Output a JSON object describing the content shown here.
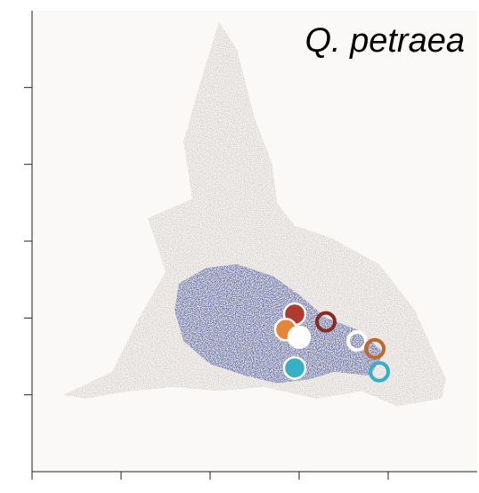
{
  "chart_data": {
    "type": "scatter",
    "title": "Q. petraea",
    "xlabel": "",
    "ylabel": "",
    "xlim": [
      0,
      5
    ],
    "ylim": [
      0,
      6
    ],
    "x_ticks": [
      0,
      1,
      2,
      3,
      4
    ],
    "y_ticks": [
      1,
      2,
      3,
      4,
      5
    ],
    "grid": false,
    "legend": "none",
    "background_density": {
      "color": "#c9c4bf",
      "outline": [
        [
          0.35,
          1.0
        ],
        [
          0.9,
          1.3
        ],
        [
          1.2,
          2.0
        ],
        [
          1.5,
          2.6
        ],
        [
          1.3,
          3.3
        ],
        [
          1.8,
          3.55
        ],
        [
          1.7,
          4.3
        ],
        [
          1.95,
          5.3
        ],
        [
          2.1,
          5.85
        ],
        [
          2.3,
          5.5
        ],
        [
          2.5,
          4.6
        ],
        [
          2.7,
          4.0
        ],
        [
          2.75,
          3.5
        ],
        [
          2.95,
          3.2
        ],
        [
          3.35,
          3.05
        ],
        [
          3.9,
          2.7
        ],
        [
          4.3,
          2.1
        ],
        [
          4.65,
          1.2
        ],
        [
          4.6,
          0.95
        ],
        [
          4.1,
          0.85
        ],
        [
          3.7,
          1.05
        ],
        [
          3.2,
          0.95
        ],
        [
          2.6,
          1.1
        ],
        [
          2.1,
          1.05
        ],
        [
          1.6,
          1.1
        ],
        [
          1.1,
          1.05
        ],
        [
          0.6,
          0.95
        ],
        [
          0.35,
          1.0
        ]
      ]
    },
    "focal_density": {
      "color": "#2e3f8f",
      "outline": [
        [
          1.65,
          2.45
        ],
        [
          1.95,
          2.65
        ],
        [
          2.3,
          2.7
        ],
        [
          2.7,
          2.55
        ],
        [
          3.0,
          2.3
        ],
        [
          3.3,
          2.0
        ],
        [
          3.65,
          1.85
        ],
        [
          3.95,
          1.55
        ],
        [
          3.8,
          1.25
        ],
        [
          3.4,
          1.3
        ],
        [
          3.1,
          1.2
        ],
        [
          2.75,
          1.15
        ],
        [
          2.4,
          1.25
        ],
        [
          2.0,
          1.4
        ],
        [
          1.7,
          1.7
        ],
        [
          1.6,
          2.1
        ],
        [
          1.65,
          2.45
        ]
      ]
    },
    "series": [
      {
        "color": "#b03a2e",
        "style": "filled",
        "x": [
          2.95
        ],
        "y": [
          2.05
        ]
      },
      {
        "color": "#e8843a",
        "style": "filled",
        "x": [
          2.85
        ],
        "y": [
          1.85
        ]
      },
      {
        "color": "#ffffff",
        "style": "filled",
        "x": [
          3.0
        ],
        "y": [
          1.75
        ]
      },
      {
        "color": "#35b0c4",
        "style": "filled",
        "x": [
          2.95
        ],
        "y": [
          1.35
        ]
      },
      {
        "color": "#8b2a22",
        "style": "ring",
        "x": [
          3.3
        ],
        "y": [
          1.95
        ]
      },
      {
        "color": "#ffffff",
        "style": "ring",
        "x": [
          3.65
        ],
        "y": [
          1.7
        ]
      },
      {
        "color": "#c0692b",
        "style": "ring",
        "x": [
          3.85
        ],
        "y": [
          1.6
        ]
      },
      {
        "color": "#35b0c4",
        "style": "ring",
        "x": [
          3.9
        ],
        "y": [
          1.3
        ]
      }
    ]
  }
}
